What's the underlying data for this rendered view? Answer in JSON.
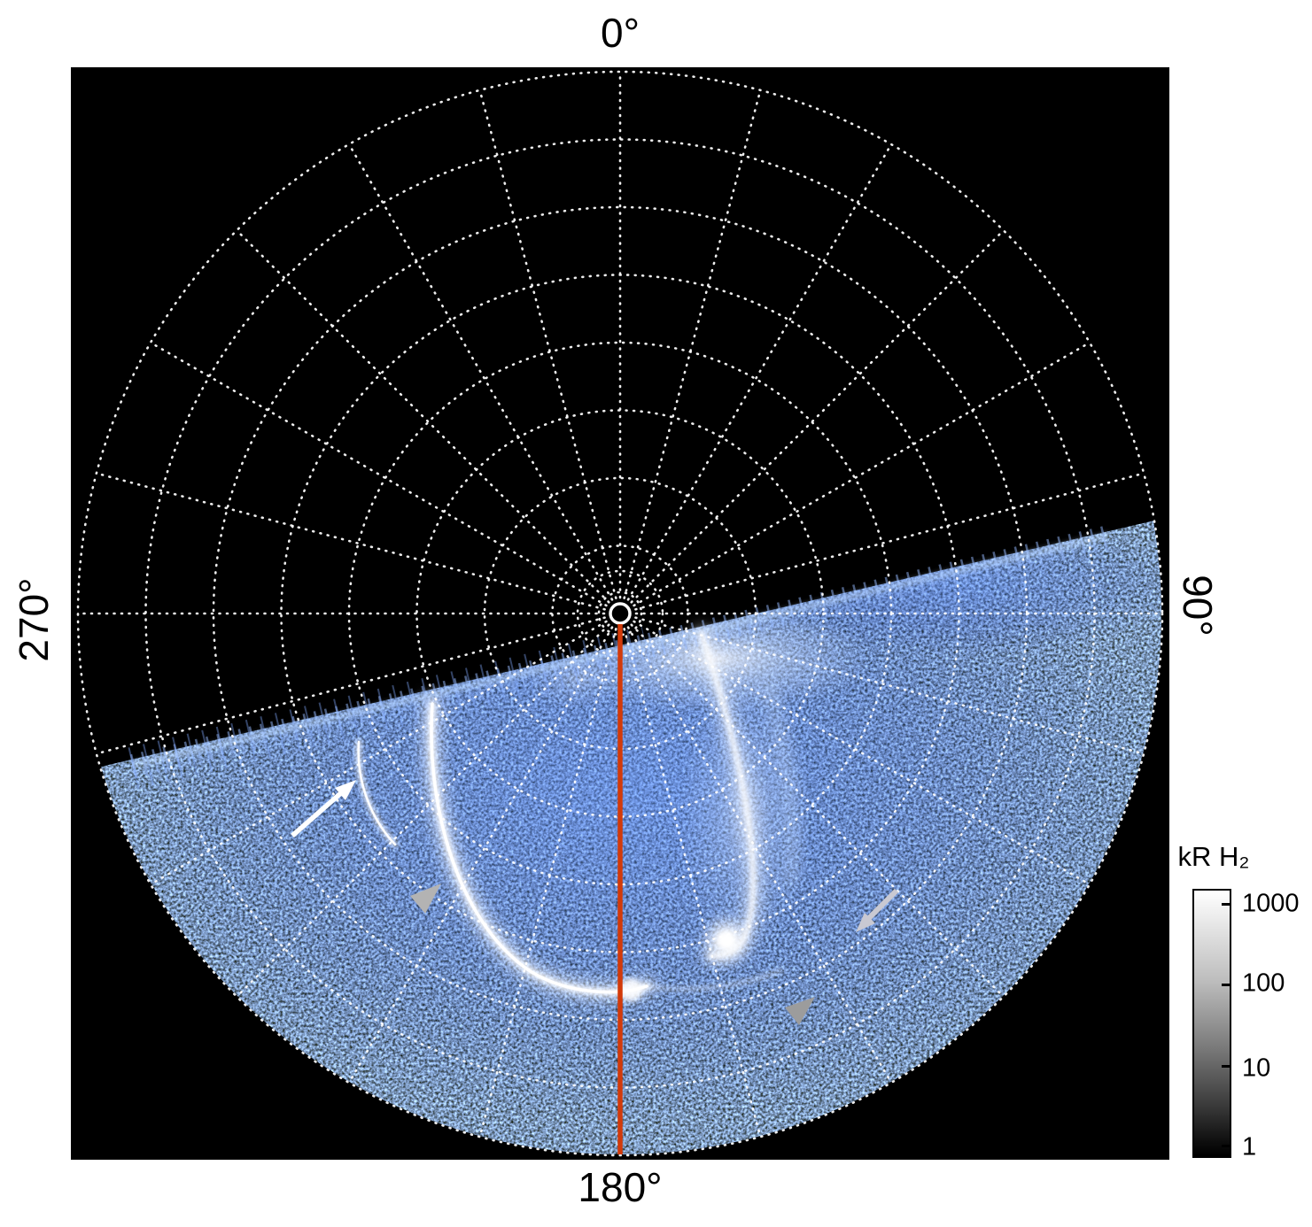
{
  "figure": {
    "type": "polar auroral emission map",
    "axis_labels": {
      "top": "0°",
      "right": "90°",
      "bottom": "180°",
      "left": "270°"
    },
    "colorbar": {
      "title": "kR H₂",
      "ticks": [
        "1000",
        "100",
        "10",
        "1"
      ]
    }
  },
  "chart_data": {
    "type": "heatmap",
    "projection": "polar",
    "title": "",
    "angular_tick_labels": [
      "0°",
      "90°",
      "180°",
      "270°"
    ],
    "angular_ticks_deg": [
      0,
      90,
      180,
      270
    ],
    "angular_gridline_step_deg": 15,
    "radial_gridlines": 8,
    "grid_style": "white dotted rings and spokes on black disk",
    "colorbar": {
      "label": "kR H₂",
      "scale": "log",
      "ticks": [
        1000,
        100,
        10,
        1
      ],
      "range": [
        1,
        1000
      ],
      "bar_colormap": "grayscale, white = 1000 (top) to black = 1 (bottom)",
      "map_colormap": "black to blue to white with increasing intensity"
    },
    "coverage": "Emission data fills only the lower portion of the disk below a tilted terminator running from ~255° azimuth (left) up past the 90° axis (right); the upper half of the disk is black (no data). The terminator edge shows comb-like vertical streak artifacts.",
    "features": [
      {
        "name": "main auroral arc",
        "description": "bright white C-shaped arc curving from mid-latitudes on the left down toward the 180° meridian"
      },
      {
        "name": "secondary faint arc",
        "description": "short fainter arc just left/poleward of the main arc, marked by the white arrow"
      },
      {
        "name": "dusk-side streak and bright spot",
        "description": "bright descending streak right of the 180° meridian ending in a round bright spot"
      },
      {
        "name": "diffuse emission",
        "description": "patchy speckled blue emission across the sunlit sector with bright white haze just below the pole"
      }
    ],
    "annotations": [
      {
        "type": "arrow",
        "color": "white",
        "direction": "pointing up-right",
        "target": "secondary faint arc"
      },
      {
        "type": "arrowhead",
        "color": "gray",
        "direction": "pointing up-right",
        "location": "below the white arrow, at the main arc"
      },
      {
        "type": "arrow",
        "color": "light gray",
        "direction": "pointing down-left",
        "location": "right side of data region"
      },
      {
        "type": "arrowhead",
        "color": "gray",
        "direction": "pointing up-right",
        "location": "lower right of the bright spot"
      }
    ],
    "reference_line": {
      "type": "meridian",
      "angle_deg": 180,
      "color": "#d23a0a",
      "extent": "from the pole marker to the 180° limb"
    },
    "pole_marker": "small white open circle at disk center"
  }
}
